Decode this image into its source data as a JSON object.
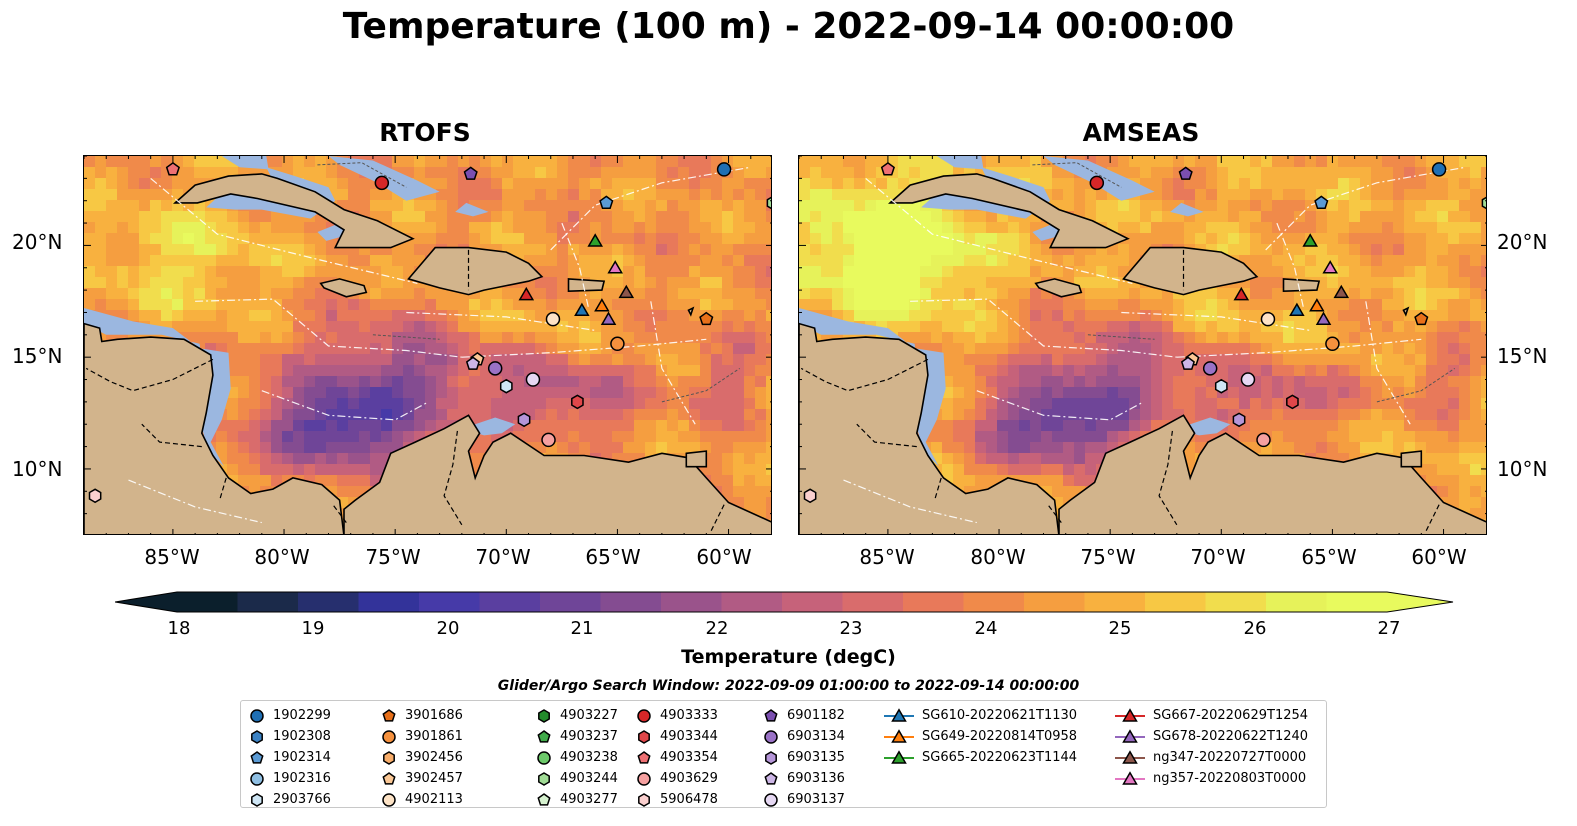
{
  "title": "Temperature (100 m) - 2022-09-14 00:00:00",
  "panels": [
    {
      "title": "RTOFS"
    },
    {
      "title": "AMSEAS"
    }
  ],
  "axes": {
    "lon_labels": [
      "85°W",
      "80°W",
      "75°W",
      "70°W",
      "65°W",
      "60°W"
    ],
    "lat_labels": [
      "20°N",
      "15°N",
      "10°N"
    ]
  },
  "colorbar": {
    "label": "Temperature (degC)",
    "ticks": [
      "18",
      "19",
      "20",
      "21",
      "22",
      "23",
      "24",
      "25",
      "26",
      "27"
    ],
    "range": [
      17.5,
      27.5
    ],
    "colors": [
      "#0b1f2c",
      "#1b2a4a",
      "#262f6e",
      "#33339a",
      "#463aa8",
      "#5a3fa0",
      "#6f4598",
      "#844c91",
      "#9a538b",
      "#b15b84",
      "#c6627a",
      "#d96c6c",
      "#e8795a",
      "#f08a4a",
      "#f59e40",
      "#f8b13f",
      "#f7c844",
      "#f1dd4d",
      "#e6f25a",
      "#e8fa5e"
    ]
  },
  "legend": {
    "title": "Glider/Argo Search Window: 2022-09-09 01:00:00 to 2022-09-14 00:00:00",
    "columns": [
      [
        {
          "label": "1902299",
          "marker": "circle",
          "color": "#1f6fb4"
        },
        {
          "label": "1902308",
          "marker": "hexagon",
          "color": "#3b82c4"
        },
        {
          "label": "1902314",
          "marker": "pentagon",
          "color": "#5b9bd5"
        },
        {
          "label": "1902316",
          "marker": "circle",
          "color": "#8fbfe3"
        },
        {
          "label": "2903766",
          "marker": "hexagon",
          "color": "#cfe6f5"
        }
      ],
      [
        {
          "label": "3901686",
          "marker": "pentagon",
          "color": "#e8701a"
        },
        {
          "label": "3901861",
          "marker": "circle",
          "color": "#f5913e"
        },
        {
          "label": "3902456",
          "marker": "hexagon",
          "color": "#f8ad6a"
        },
        {
          "label": "3902457",
          "marker": "pentagon",
          "color": "#fbc896"
        },
        {
          "label": "4902113",
          "marker": "circle",
          "color": "#fde3c6"
        }
      ],
      [
        {
          "label": "4903227",
          "marker": "hexagon",
          "color": "#238b2c"
        },
        {
          "label": "4903237",
          "marker": "pentagon",
          "color": "#41ab4a"
        },
        {
          "label": "4903238",
          "marker": "circle",
          "color": "#6cc96a"
        },
        {
          "label": "4903244",
          "marker": "hexagon",
          "color": "#a1dc96"
        },
        {
          "label": "4903277",
          "marker": "pentagon",
          "color": "#d6f2cf"
        }
      ],
      [
        {
          "label": "4903333",
          "marker": "circle",
          "color": "#d62728"
        },
        {
          "label": "4903344",
          "marker": "hexagon",
          "color": "#e0474a"
        },
        {
          "label": "4903354",
          "marker": "pentagon",
          "color": "#ee7073"
        },
        {
          "label": "4903629",
          "marker": "circle",
          "color": "#f5a0a0"
        },
        {
          "label": "5906478",
          "marker": "hexagon",
          "color": "#fbd0cf"
        }
      ],
      [
        {
          "label": "6901182",
          "marker": "pentagon",
          "color": "#7b4fb0"
        },
        {
          "label": "6903134",
          "marker": "circle",
          "color": "#9a72c6"
        },
        {
          "label": "6903135",
          "marker": "hexagon",
          "color": "#b595d8"
        },
        {
          "label": "6903136",
          "marker": "pentagon",
          "color": "#cdb6e6"
        },
        {
          "label": "6903137",
          "marker": "circle",
          "color": "#e6d8f3"
        }
      ],
      [
        {
          "label": "SG610-20220621T1130",
          "marker": "triangle-line",
          "color": "#1f77b4"
        },
        {
          "label": "SG649-20220814T0958",
          "marker": "triangle-line",
          "color": "#ff7f0e"
        },
        {
          "label": "SG665-20220623T1144",
          "marker": "triangle-line",
          "color": "#2ca02c"
        }
      ],
      [
        {
          "label": "SG667-20220629T1254",
          "marker": "triangle-line",
          "color": "#d62728"
        },
        {
          "label": "SG678-20220622T1240",
          "marker": "triangle-line",
          "color": "#9467bd"
        },
        {
          "label": "ng347-20220727T0000",
          "marker": "triangle-line",
          "color": "#8c564b"
        },
        {
          "label": "ng357-20220803T0000",
          "marker": "triangle-line",
          "color": "#e377c2"
        }
      ]
    ]
  },
  "platforms": [
    {
      "id": "1902299",
      "lon": -60.2,
      "lat": 23.4
    },
    {
      "id": "1902314",
      "lon": -65.5,
      "lat": 21.9
    },
    {
      "id": "2903766",
      "lon": -70.0,
      "lat": 13.7
    },
    {
      "id": "3901686",
      "lon": -61.0,
      "lat": 16.7
    },
    {
      "id": "3901861",
      "lon": -65.0,
      "lat": 15.6
    },
    {
      "id": "3902457",
      "lon": -71.3,
      "lat": 14.9
    },
    {
      "id": "4902113",
      "lon": -67.9,
      "lat": 16.7
    },
    {
      "id": "4903244",
      "lon": -58.0,
      "lat": 21.9
    },
    {
      "id": "4903333",
      "lon": -75.6,
      "lat": 22.8
    },
    {
      "id": "4903344",
      "lon": -66.8,
      "lat": 13.0
    },
    {
      "id": "4903354",
      "lon": -85.0,
      "lat": 23.4
    },
    {
      "id": "4903629",
      "lon": -68.1,
      "lat": 11.3
    },
    {
      "id": "5906478",
      "lon": -88.5,
      "lat": 8.8
    },
    {
      "id": "6901182",
      "lon": -71.6,
      "lat": 23.2
    },
    {
      "id": "6903134",
      "lon": -70.5,
      "lat": 14.5
    },
    {
      "id": "6903135",
      "lon": -69.2,
      "lat": 12.2
    },
    {
      "id": "6903136",
      "lon": -71.5,
      "lat": 14.7
    },
    {
      "id": "6903137",
      "lon": -68.8,
      "lat": 14.0
    },
    {
      "id": "SG610-20220621T1130",
      "lon": -66.6,
      "lat": 17.1
    },
    {
      "id": "SG649-20220814T0958",
      "lon": -65.7,
      "lat": 17.3
    },
    {
      "id": "SG665-20220623T1144",
      "lon": -66.0,
      "lat": 20.2
    },
    {
      "id": "SG667-20220629T1254",
      "lon": -69.1,
      "lat": 17.8
    },
    {
      "id": "SG678-20220622T1240",
      "lon": -65.4,
      "lat": 16.7
    },
    {
      "id": "ng347-20220727T0000",
      "lon": -64.6,
      "lat": 17.9
    },
    {
      "id": "ng357-20220803T0000",
      "lon": -65.1,
      "lat": 19.0
    }
  ]
}
